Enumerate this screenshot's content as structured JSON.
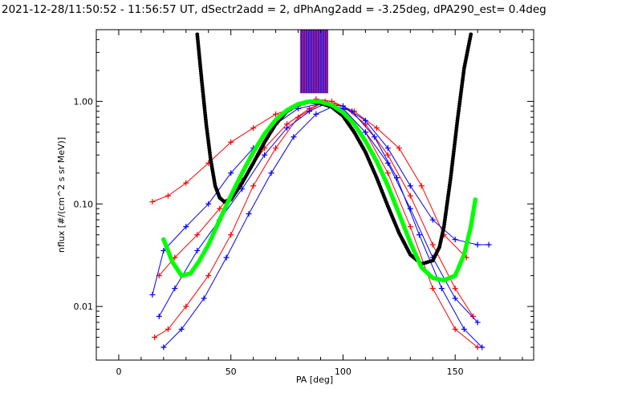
{
  "chart_data": {
    "type": "line",
    "title": "2021-12-28/11:50:52 - 11:56:57 UT, dSectr2add = 2, dPhAng2add = -3.25deg, dPA290_est=   0.4deg",
    "xlabel": "PA [deg]",
    "ylabel": "nflux [#/(cm^2 s sr MeV)]",
    "xlim": [
      -10,
      185
    ],
    "ylim": [
      0.003,
      5.0
    ],
    "yscale": "log",
    "x_ticks": [
      0,
      50,
      100,
      150
    ],
    "x_tick_labels": [
      "0",
      "50",
      "100",
      "150"
    ],
    "y_ticks": [
      0.01,
      0.1,
      1.0
    ],
    "y_tick_labels": [
      "0.01",
      "0.10",
      "1.00"
    ],
    "grid": false,
    "legend": "none",
    "colors": {
      "red": "#ff0000",
      "blue": "#0000ff",
      "green": "#00ff00",
      "black": "#000000"
    },
    "series": [
      {
        "color": "red",
        "style": "line+plus",
        "x": [
          15,
          22,
          30,
          40,
          50,
          60,
          70,
          80,
          88,
          95,
          105,
          115,
          125,
          135,
          145,
          155
        ],
        "y": [
          0.105,
          0.12,
          0.16,
          0.25,
          0.4,
          0.55,
          0.75,
          0.9,
          1.05,
          1.0,
          0.8,
          0.55,
          0.35,
          0.15,
          0.05,
          0.03
        ]
      },
      {
        "color": "red",
        "style": "line+plus",
        "x": [
          18,
          25,
          35,
          45,
          55,
          65,
          75,
          85,
          92,
          100,
          110,
          120,
          130,
          140,
          150,
          158
        ],
        "y": [
          0.02,
          0.03,
          0.05,
          0.09,
          0.17,
          0.35,
          0.6,
          0.85,
          1.0,
          0.9,
          0.6,
          0.3,
          0.12,
          0.04,
          0.015,
          0.008
        ]
      },
      {
        "color": "red",
        "style": "line+plus",
        "x": [
          16,
          22,
          30,
          40,
          50,
          60,
          70,
          80,
          90,
          100,
          110,
          120,
          130,
          140,
          150,
          160
        ],
        "y": [
          0.005,
          0.006,
          0.01,
          0.02,
          0.05,
          0.15,
          0.35,
          0.7,
          0.95,
          0.85,
          0.5,
          0.2,
          0.06,
          0.015,
          0.006,
          0.004
        ]
      },
      {
        "color": "blue",
        "style": "line+plus",
        "x": [
          15,
          20,
          30,
          40,
          50,
          60,
          70,
          80,
          90,
          100,
          110,
          120,
          130,
          140,
          150,
          160,
          165
        ],
        "y": [
          0.013,
          0.035,
          0.06,
          0.1,
          0.2,
          0.35,
          0.6,
          0.85,
          0.95,
          0.9,
          0.65,
          0.35,
          0.15,
          0.07,
          0.045,
          0.04,
          0.04
        ]
      },
      {
        "color": "blue",
        "style": "line+plus",
        "x": [
          18,
          25,
          35,
          45,
          55,
          65,
          75,
          85,
          92,
          100,
          110,
          120,
          130,
          140,
          150,
          160
        ],
        "y": [
          0.008,
          0.015,
          0.035,
          0.07,
          0.14,
          0.3,
          0.55,
          0.8,
          0.95,
          0.85,
          0.5,
          0.25,
          0.09,
          0.03,
          0.012,
          0.007
        ]
      },
      {
        "color": "blue",
        "style": "line+plus",
        "x": [
          20,
          28,
          38,
          48,
          58,
          68,
          78,
          88,
          96,
          104,
          114,
          124,
          134,
          144,
          154,
          162
        ],
        "y": [
          0.004,
          0.006,
          0.012,
          0.03,
          0.08,
          0.2,
          0.45,
          0.75,
          0.9,
          0.8,
          0.45,
          0.18,
          0.05,
          0.015,
          0.006,
          0.004
        ]
      }
    ],
    "fit_green": {
      "x": [
        20,
        24,
        28,
        32,
        36,
        40,
        45,
        50,
        55,
        60,
        65,
        70,
        75,
        80,
        85,
        90,
        95,
        100,
        105,
        110,
        115,
        120,
        125,
        130,
        135,
        140,
        145,
        150,
        154,
        157,
        159
      ],
      "y": [
        0.045,
        0.027,
        0.02,
        0.021,
        0.028,
        0.04,
        0.07,
        0.12,
        0.2,
        0.32,
        0.48,
        0.66,
        0.82,
        0.94,
        1.0,
        0.99,
        0.92,
        0.78,
        0.6,
        0.41,
        0.26,
        0.15,
        0.08,
        0.042,
        0.024,
        0.019,
        0.018,
        0.02,
        0.032,
        0.06,
        0.11
      ]
    },
    "fit_black": {
      "x": [
        35,
        37,
        39,
        41,
        43,
        45,
        47,
        50,
        55,
        60,
        65,
        70,
        75,
        80,
        85,
        90,
        95,
        100,
        105,
        110,
        115,
        120,
        125,
        130,
        135,
        140,
        143,
        145,
        148,
        151,
        154,
        157
      ],
      "y": [
        4.5,
        1.6,
        0.6,
        0.27,
        0.15,
        0.115,
        0.105,
        0.11,
        0.16,
        0.25,
        0.4,
        0.6,
        0.8,
        0.93,
        0.99,
        0.96,
        0.88,
        0.72,
        0.5,
        0.32,
        0.18,
        0.095,
        0.052,
        0.032,
        0.026,
        0.028,
        0.038,
        0.06,
        0.18,
        0.65,
        2.1,
        4.5
      ]
    },
    "vertical_bars": {
      "x_from": 81,
      "x_to": 93,
      "y_from": 1.2,
      "y_to": 5.0
    }
  }
}
